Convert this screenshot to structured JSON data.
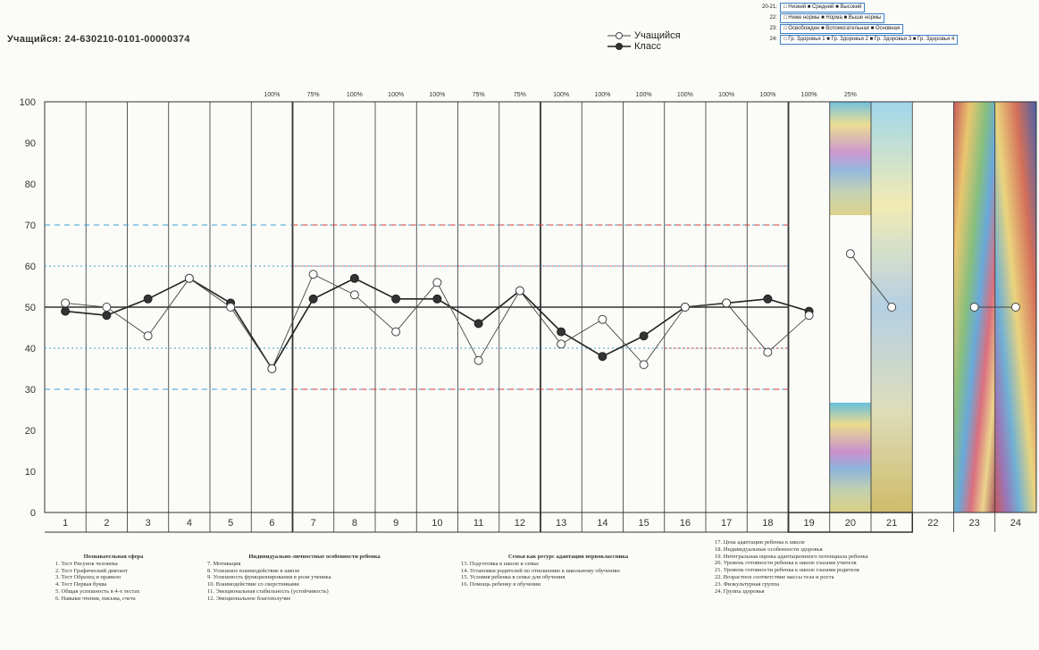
{
  "student_label": "Учащийся: 24-630210-0101-00000374",
  "legend": {
    "student": "Учащийся",
    "class": "Класс"
  },
  "category_legend": [
    {
      "code": "20-21:",
      "text": "□ Низкий  ■ Средний  ■ Высокий"
    },
    {
      "code": "22:",
      "text": "□ Ниже нормы  ■ Норма  ■ Выше нормы"
    },
    {
      "code": "23:",
      "text": "□ Освобожден  ■ Вспомогательная  ■ Основная"
    },
    {
      "code": "24:",
      "text": "□ Гр. Здоровья 1  ■ Гр. Здоровья 2  ■ Гр. Здоровья 3  ■ Гр. Здоровья 4"
    }
  ],
  "chart_data": {
    "type": "line",
    "x": [
      1,
      2,
      3,
      4,
      5,
      6,
      7,
      8,
      9,
      10,
      11,
      12,
      13,
      14,
      15,
      16,
      17,
      18,
      19
    ],
    "x_ticks": [
      "1",
      "2",
      "3",
      "4",
      "5",
      "6",
      "7",
      "8",
      "9",
      "10",
      "11",
      "12",
      "13",
      "14",
      "15",
      "16",
      "17",
      "18",
      "19",
      "20",
      "21",
      "22",
      "23",
      "24"
    ],
    "ylim": [
      0,
      100
    ],
    "y_ticks": [
      0,
      10,
      20,
      30,
      40,
      50,
      60,
      70,
      80,
      90,
      100
    ],
    "top_labels": [
      "100%",
      "75%",
      "100%",
      "100%",
      "100%",
      "75%",
      "75%",
      "100%",
      "100%",
      "100%",
      "100%",
      "100%",
      "100%",
      "100%",
      "25%"
    ],
    "series": [
      {
        "name": "Учащийся",
        "values": [
          51,
          50,
          43,
          57,
          50,
          35,
          58,
          53,
          44,
          56,
          37,
          54,
          41,
          47,
          36,
          50,
          51,
          39,
          48
        ]
      },
      {
        "name": "Класс",
        "values": [
          49,
          48,
          52,
          57,
          51,
          35,
          52,
          57,
          52,
          52,
          46,
          54,
          44,
          38,
          43,
          50,
          51,
          52,
          49
        ]
      }
    ],
    "extra_points": [
      {
        "x": 20,
        "y": 63
      },
      {
        "x": 21,
        "y": 50
      },
      {
        "x": 23,
        "y": 50
      },
      {
        "x": 24,
        "y": 50
      }
    ],
    "reference_lines": [
      70,
      60,
      50,
      40,
      30
    ],
    "grid": true
  },
  "legend_blocks": {
    "col1": {
      "title": "Познавательная сфера",
      "items": [
        "1. Тест Рисунок человека",
        "2. Тест Графический диктант",
        "3. Тест Образец и правило",
        "4. Тест Первая буква",
        "5. Общая успешность в 4-х тестах",
        "6. Навыки чтения, письма, счета"
      ]
    },
    "col2": {
      "title": "Индивидуально-личностные особенности ребенка",
      "items": [
        "7. Мотивация",
        "8. Успешное взаимодействие в школе",
        "9. Успешность функционирования в роли ученика",
        "10. Взаимодействие со сверстниками",
        "11. Эмоциональная стабильность (устойчивость)",
        "12. Эмоциональное благополучие"
      ]
    },
    "col3": {
      "title": "Семья как ресурс адаптации первоклассника",
      "items": [
        "13. Подготовка к школе в семье",
        "14. Установки родителей по отношению к школьному обучению",
        "15. Условия ребенка в семье для обучения",
        "16. Помощь ребенку в обучении"
      ]
    },
    "col4": {
      "items": [
        "17. Цена адаптации ребенка к школе",
        "18. Индивидуальные особенности здоровья",
        "19. Интегральная оценка адаптационного потенциала ребенка",
        "20. Уровень готовности ребенка к школе глазами учителя",
        "21. Уровень готовности ребенка к школе глазами родителя",
        "22. Возрастное соответствие массы тела и роста",
        "23. Физкультурная группа",
        "24. Группа здоровья"
      ]
    }
  },
  "colors": {
    "student_line": "#444444",
    "class_line": "#222222",
    "ref_red": "#d23a3a",
    "ref_blue": "#3aa0d8",
    "ref_dark": "#333333"
  }
}
